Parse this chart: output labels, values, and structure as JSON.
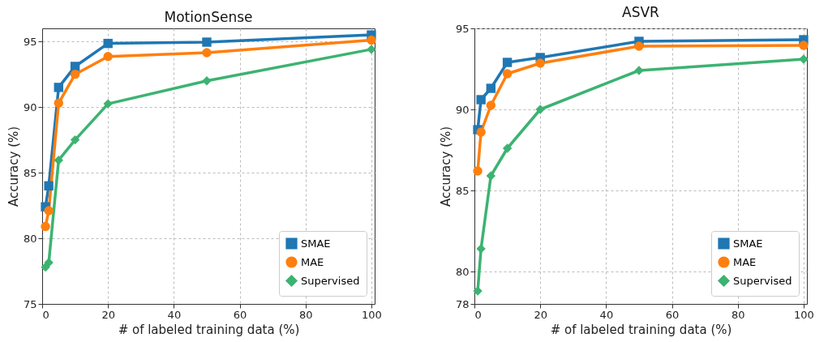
{
  "chart_data": [
    {
      "type": "line",
      "title": "MotionSense",
      "xlabel": "# of labeled training data (%)",
      "ylabel": "Accuracy (%)",
      "x": [
        1,
        2,
        5,
        10,
        20,
        50,
        100
      ],
      "series": [
        {
          "name": "SMAE",
          "color": "#1f77b4",
          "marker": "square",
          "values": [
            82.4,
            84.0,
            91.5,
            93.1,
            94.85,
            94.95,
            95.5
          ]
        },
        {
          "name": "MAE",
          "color": "#ff7f0e",
          "marker": "circle",
          "values": [
            80.9,
            82.1,
            90.3,
            92.5,
            93.85,
            94.15,
            95.1
          ]
        },
        {
          "name": "Supervised",
          "color": "#3cb371",
          "marker": "diamond",
          "values": [
            77.8,
            78.15,
            85.95,
            87.5,
            90.25,
            92.0,
            94.4
          ]
        }
      ],
      "xlim": [
        0,
        101
      ],
      "ylim": [
        75,
        96
      ],
      "xticks": [
        0,
        20,
        40,
        60,
        80,
        100
      ],
      "yticks": [
        75,
        80,
        85,
        90,
        95
      ],
      "grid": true,
      "legend": "bottom right",
      "line_style": "solid"
    },
    {
      "type": "line",
      "title": "ASVR",
      "xlabel": "# of labeled training data (%)",
      "ylabel": "Accuracy (%)",
      "x": [
        1,
        2,
        5,
        10,
        20,
        50,
        100
      ],
      "series": [
        {
          "name": "SMAE",
          "color": "#1f77b4",
          "marker": "square",
          "values": [
            88.75,
            90.6,
            91.3,
            92.9,
            93.2,
            94.2,
            94.3
          ]
        },
        {
          "name": "MAE",
          "color": "#ff7f0e",
          "marker": "circle",
          "values": [
            86.2,
            88.6,
            90.25,
            92.2,
            92.85,
            93.9,
            93.95
          ]
        },
        {
          "name": "Supervised",
          "color": "#3cb371",
          "marker": "diamond",
          "values": [
            78.8,
            81.4,
            85.9,
            87.6,
            90.0,
            92.4,
            93.1
          ]
        }
      ],
      "xlim": [
        0,
        101
      ],
      "ylim": [
        78,
        95
      ],
      "xticks": [
        0,
        20,
        40,
        60,
        80,
        100
      ],
      "yticks": [
        78,
        80,
        85,
        90,
        95
      ],
      "grid": true,
      "legend": "bottom right",
      "line_style": "solid"
    }
  ]
}
